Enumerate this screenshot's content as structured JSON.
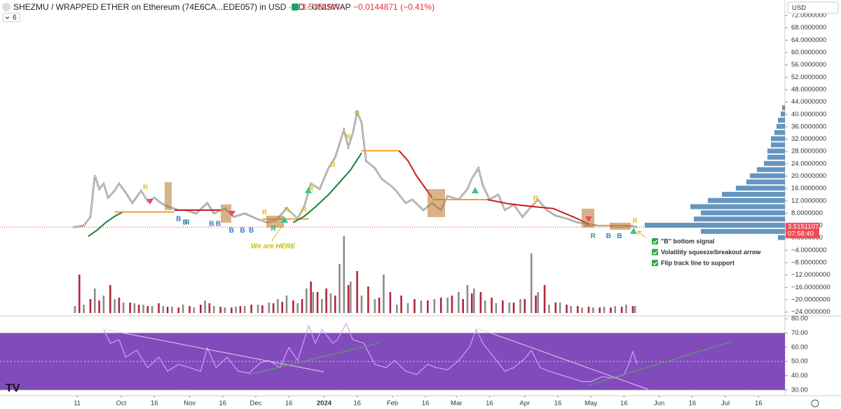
{
  "chart_data": [
    {
      "type": "line",
      "title": "SHEZMU / WRAPPED ETHER on Ethereum (74E6CA...EDE057) in USD · 1D · UNISWAP",
      "last": 3.5151107,
      "change": "−0.0144871 (−0.41%)",
      "currency": "USD",
      "indicators": "6",
      "countdown": "07:58:40",
      "annotation": "We are HERE",
      "notes": [
        "\"B\" bottom signal",
        "Volatility squeeze/breakout arrow",
        "Flip track line to support"
      ],
      "xlim": [
        -25,
        331
      ],
      "xticks": [
        {
          "value": 10,
          "label": "11"
        },
        {
          "value": 30,
          "label": "Oct"
        },
        {
          "value": 45,
          "label": "16"
        },
        {
          "value": 61,
          "label": "Nov"
        },
        {
          "value": 76,
          "label": "16"
        },
        {
          "value": 91,
          "label": "Dec"
        },
        {
          "value": 106,
          "label": "16"
        },
        {
          "value": 122,
          "label": "2024"
        },
        {
          "value": 137,
          "label": "16"
        },
        {
          "value": 153,
          "label": "Feb"
        },
        {
          "value": 168,
          "label": "16"
        },
        {
          "value": 182,
          "label": "Mar"
        },
        {
          "value": 197,
          "label": "16"
        },
        {
          "value": 213,
          "label": "Apr"
        },
        {
          "value": 228,
          "label": "16"
        },
        {
          "value": 243,
          "label": "May"
        },
        {
          "value": 258,
          "label": "16"
        },
        {
          "value": 274,
          "label": "Jun"
        },
        {
          "value": 289,
          "label": "16"
        },
        {
          "value": 304,
          "label": "Jul"
        },
        {
          "value": 319,
          "label": "16"
        }
      ],
      "ylim": [
        -25,
        77
      ],
      "yticks": [
        {
          "value": -24,
          "label": "−24.0000000"
        },
        {
          "value": -20,
          "label": "−20.0000000"
        },
        {
          "value": -16,
          "label": "−16.0000000"
        },
        {
          "value": -12,
          "label": "−12.0000000"
        },
        {
          "value": -8,
          "label": "−8.0000000"
        },
        {
          "value": -4,
          "label": "−4.0000000"
        },
        {
          "value": 0,
          "label": "0.0000000"
        },
        {
          "value": 4,
          "label": "4.0000000"
        },
        {
          "value": 8,
          "label": "8.0000000"
        },
        {
          "value": 12,
          "label": "12.0000000"
        },
        {
          "value": 16,
          "label": "16.0000000"
        },
        {
          "value": 20,
          "label": "20.0000000"
        },
        {
          "value": 24,
          "label": "24.0000000"
        },
        {
          "value": 28,
          "label": "28.0000000"
        },
        {
          "value": 32,
          "label": "32.0000000"
        },
        {
          "value": 36,
          "label": "36.0000000"
        },
        {
          "value": 40,
          "label": "40.0000000"
        },
        {
          "value": 44,
          "label": "44.0000000"
        },
        {
          "value": 48,
          "label": "48.0000000"
        },
        {
          "value": 52,
          "label": "52.0000000"
        },
        {
          "value": 56,
          "label": "56.0000000"
        },
        {
          "value": 60,
          "label": "60.0000000"
        },
        {
          "value": 64,
          "label": "64.0000000"
        },
        {
          "value": 68,
          "label": "68.0000000"
        },
        {
          "value": 72,
          "label": "72.0000000"
        }
      ],
      "series": [
        {
          "color": "#ffffff",
          "x": [
            8,
            13,
            16,
            18,
            20,
            22,
            24,
            27,
            29,
            32,
            35,
            39,
            42,
            45,
            48,
            51,
            56,
            59,
            64,
            69,
            72,
            77,
            81,
            86,
            91,
            96,
            100,
            105,
            110,
            113,
            116,
            120,
            124,
            127,
            131,
            133,
            135,
            137,
            139,
            141,
            145,
            148,
            151,
            154,
            159,
            162,
            167,
            171,
            175,
            178,
            183,
            187,
            189,
            192,
            194,
            197,
            201,
            204,
            208,
            212,
            216,
            219,
            223,
            227,
            232,
            237,
            242,
            246,
            251,
            256,
            261,
            264
          ],
          "values": [
            3.4,
            4,
            6.8,
            20.3,
            15.8,
            17.6,
            13,
            15.3,
            17.6,
            14.7,
            11.3,
            15.3,
            11.8,
            13,
            11.3,
            10.2,
            9,
            9,
            7.9,
            11.3,
            7.9,
            9.5,
            6.8,
            7.9,
            6.3,
            5,
            5.6,
            9.5,
            6.3,
            10.2,
            17.6,
            15.8,
            22.6,
            26,
            35,
            29.4,
            33.9,
            40.7,
            37.3,
            24.9,
            22.6,
            19.2,
            17.6,
            15.8,
            11.3,
            12.4,
            9,
            11.3,
            9,
            13.6,
            12.4,
            15.8,
            19.2,
            22.6,
            17,
            12.4,
            14,
            9,
            10.8,
            6.8,
            10.2,
            12.4,
            9,
            7.2,
            6.3,
            5,
            4.5,
            4,
            4,
            3.6,
            4,
            3.5
          ]
        },
        {
          "color": "#1e7d32",
          "x": [
            15,
            19,
            23,
            27,
            31
          ],
          "values": [
            0.5,
            2.5,
            5,
            7,
            8.5
          ]
        },
        {
          "color": "#f0a030",
          "x": [
            27,
            54
          ],
          "values": [
            8.4,
            8.4
          ]
        },
        {
          "color": "#d01818",
          "x": [
            54,
            75
          ],
          "values": [
            9,
            9
          ]
        },
        {
          "color": "#f0a030",
          "x": [
            94,
            115
          ],
          "values": [
            6.1,
            6.1
          ]
        },
        {
          "color": "#1e7d32",
          "x": [
            108,
            113,
            118,
            124,
            129,
            134,
            139
          ],
          "values": [
            5,
            7,
            10,
            14,
            18,
            22,
            27.5
          ]
        },
        {
          "color": "#f0a030",
          "x": [
            139,
            156
          ],
          "values": [
            28.2,
            28.2
          ]
        },
        {
          "color": "#d01818",
          "x": [
            156,
            160,
            164,
            168,
            171
          ],
          "values": [
            28.2,
            25,
            20,
            16,
            13
          ]
        },
        {
          "color": "#f0a030",
          "x": [
            171,
            196
          ],
          "values": [
            12.4,
            12.4
          ]
        },
        {
          "color": "#d01818",
          "x": [
            196,
            206,
            216,
            226,
            236,
            242
          ],
          "values": [
            12.4,
            11,
            10.2,
            9.5,
            6.5,
            4.5
          ]
        },
        {
          "color": "#f0a030",
          "x": [
            240,
            262
          ],
          "values": [
            4,
            4
          ]
        }
      ],
      "signals": [
        {
          "label": "R",
          "x": 41,
          "value": 16.3,
          "color": "#d8c020"
        },
        {
          "label": "R",
          "x": 95,
          "value": 8.1,
          "color": "#d8c020"
        },
        {
          "label": "R",
          "x": 105,
          "value": 9,
          "color": "#d8c020"
        },
        {
          "label": "R",
          "x": 113,
          "value": 9,
          "color": "#d8c020"
        },
        {
          "label": "R",
          "x": 116,
          "value": 15.8,
          "color": "#d8c020"
        },
        {
          "label": "R",
          "x": 126,
          "value": 23.5,
          "color": "#d8c020"
        },
        {
          "label": "R",
          "x": 133,
          "value": 32.5,
          "color": "#d8c020"
        },
        {
          "label": "R",
          "x": 137,
          "value": 40.2,
          "color": "#d8c020"
        },
        {
          "label": "R",
          "x": 218,
          "value": 12.7,
          "color": "#d8c020"
        },
        {
          "label": "R",
          "x": 263,
          "value": 5.4,
          "color": "#d8c020"
        },
        {
          "label": "B",
          "x": 56,
          "value": 6.1,
          "color": "#2f7fd0"
        },
        {
          "label": "B",
          "x": 59,
          "value": 5,
          "color": "#2f7fd0"
        },
        {
          "label": "B",
          "x": 71,
          "value": 4.5,
          "color": "#2f7fd0"
        },
        {
          "label": "B",
          "x": 74,
          "value": 4.5,
          "color": "#2f7fd0"
        },
        {
          "label": "B",
          "x": 80,
          "value": 2.3,
          "color": "#2f7fd0"
        },
        {
          "label": "B",
          "x": 85,
          "value": 2.3,
          "color": "#2f7fd0"
        },
        {
          "label": "B",
          "x": 89,
          "value": 2.3,
          "color": "#2f7fd0"
        },
        {
          "label": "B",
          "x": 251,
          "value": 0.5,
          "color": "#2f7fd0"
        },
        {
          "label": "B",
          "x": 256,
          "value": 0.5,
          "color": "#2f7fd0"
        },
        {
          "label": "R",
          "x": 60,
          "value": 5,
          "color": "#20a090"
        },
        {
          "label": "R",
          "x": 99,
          "value": 2.9,
          "color": "#20a090"
        },
        {
          "label": "R",
          "x": 244,
          "value": 0.5,
          "color": "#20a090"
        }
      ]
    },
    {
      "type": "bar",
      "ylim": [
        0,
        120
      ],
      "series": [
        {
          "color": "#8c8c8c",
          "x": [
            9,
            13,
            18,
            22,
            27,
            31,
            36,
            40,
            44,
            49,
            53,
            58,
            63,
            68,
            72,
            77,
            82,
            86,
            92,
            97,
            101,
            105,
            110,
            114,
            117,
            121,
            125,
            129,
            131,
            134,
            139,
            145,
            149,
            155,
            160,
            166,
            172,
            178,
            183,
            187,
            190,
            195,
            200,
            206,
            211,
            216,
            219,
            224,
            229,
            234,
            239,
            244,
            249,
            254,
            259,
            263
          ],
          "values": [
            10,
            12,
            35,
            25,
            20,
            15,
            14,
            12,
            10,
            10,
            9,
            12,
            8,
            18,
            10,
            8,
            9,
            10,
            12,
            15,
            20,
            25,
            14,
            35,
            30,
            20,
            28,
            70,
            110,
            45,
            25,
            20,
            55,
            12,
            14,
            18,
            20,
            22,
            30,
            40,
            35,
            18,
            14,
            15,
            20,
            85,
            30,
            12,
            15,
            10,
            8,
            8,
            9,
            10,
            12,
            10
          ]
        },
        {
          "color": "#b3263a",
          "x": [
            11,
            16,
            20,
            25,
            29,
            34,
            38,
            42,
            47,
            51,
            56,
            61,
            66,
            70,
            75,
            80,
            84,
            89,
            94,
            99,
            103,
            108,
            112,
            116,
            119,
            123,
            127,
            133,
            137,
            142,
            147,
            152,
            157,
            163,
            169,
            175,
            180,
            185,
            189,
            193,
            198,
            203,
            208,
            213,
            218,
            222,
            227,
            232,
            237,
            242,
            247,
            252,
            257,
            262
          ],
          "values": [
            55,
            20,
            18,
            40,
            22,
            15,
            12,
            10,
            14,
            9,
            8,
            10,
            12,
            14,
            9,
            8,
            10,
            12,
            11,
            14,
            16,
            18,
            20,
            45,
            30,
            35,
            25,
            40,
            60,
            38,
            22,
            30,
            25,
            20,
            18,
            22,
            25,
            20,
            28,
            30,
            22,
            18,
            15,
            20,
            25,
            40,
            15,
            12,
            10,
            9,
            8,
            8,
            9,
            10
          ]
        }
      ]
    },
    {
      "type": "hbar",
      "ylim": [
        -25,
        77
      ],
      "xlim": [
        0,
        250
      ],
      "color": "#3d7cb0",
      "y": [
        0,
        2,
        4,
        6,
        8,
        10,
        12,
        14,
        16,
        18,
        20,
        22,
        24,
        26,
        28,
        30,
        32,
        34,
        36,
        38,
        40,
        42
      ],
      "values": [
        10,
        120,
        200,
        130,
        120,
        135,
        110,
        90,
        70,
        55,
        50,
        40,
        30,
        25,
        25,
        20,
        20,
        15,
        12,
        10,
        6,
        4
      ]
    },
    {
      "type": "line",
      "ylim": [
        26,
        82.5
      ],
      "yticks": [
        {
          "value": 30,
          "label": "30.00"
        },
        {
          "value": 40,
          "label": "40.00"
        },
        {
          "value": 50,
          "label": "50.00"
        },
        {
          "value": 60,
          "label": "60.00"
        },
        {
          "value": 70,
          "label": "70.00"
        },
        {
          "value": 80,
          "label": "80.00"
        }
      ],
      "band": [
        30,
        70
      ],
      "series": [
        {
          "color": "#d49cff",
          "x": [
            22,
            25,
            29,
            32,
            37,
            42,
            47,
            51,
            56,
            61,
            66,
            69,
            73,
            78,
            83,
            88,
            93,
            97,
            102,
            106,
            110,
            115,
            118,
            121,
            126,
            128,
            132,
            135,
            140,
            145,
            150,
            154,
            159,
            164,
            169,
            173,
            178,
            183,
            188,
            191,
            194,
            199,
            204,
            208,
            213,
            216,
            220,
            224,
            229,
            234,
            239,
            243,
            248,
            253,
            258,
            260,
            262,
            264
          ],
          "values": [
            72.6,
            62.8,
            65.3,
            53,
            57.9,
            45.7,
            53,
            43.2,
            48,
            45.7,
            43,
            59.4,
            45.7,
            53,
            43.2,
            41.8,
            49,
            50.6,
            45.7,
            59.9,
            50.6,
            75.1,
            62.8,
            72.6,
            62.8,
            65.3,
            76.6,
            65.3,
            62.8,
            48,
            45.7,
            50.6,
            43.2,
            40.8,
            48,
            45.7,
            44.2,
            50.6,
            60.4,
            72.6,
            62.8,
            53,
            43.2,
            45.7,
            52,
            57.9,
            45.7,
            43.2,
            40.8,
            38.3,
            35.9,
            35.9,
            39.3,
            38.3,
            40.8,
            47.2,
            57,
            48
          ]
        }
      ]
    }
  ]
}
